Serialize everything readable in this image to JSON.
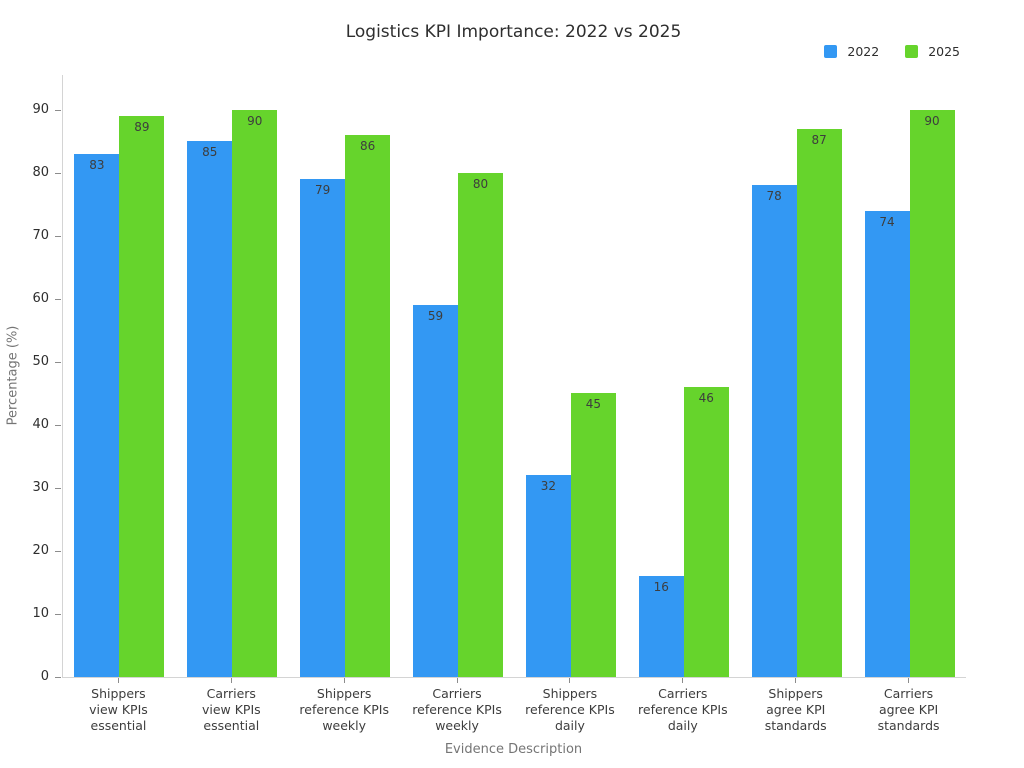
{
  "chart_data": {
    "type": "bar",
    "title": "Logistics KPI Importance: 2022 vs 2025",
    "xlabel": "Evidence Description",
    "ylabel": "Percentage (%)",
    "ylim": [
      0,
      95.5
    ],
    "y_ticks": [
      0,
      10,
      20,
      30,
      40,
      50,
      60,
      70,
      80,
      90
    ],
    "grid": false,
    "legend_position": "top-right",
    "bar_labels": true,
    "categories": [
      "Shippers\nview KPIs\nessential",
      "Carriers\nview KPIs\nessential",
      "Shippers\nreference KPIs\nweekly",
      "Carriers\nreference KPIs\nweekly",
      "Shippers\nreference KPIs\ndaily",
      "Carriers\nreference KPIs\ndaily",
      "Shippers\nagree KPI\nstandards",
      "Carriers\nagree KPI\nstandards"
    ],
    "series": [
      {
        "name": "2022",
        "color": "#3398f3",
        "values": [
          83,
          85,
          79,
          59,
          32,
          16,
          78,
          74
        ]
      },
      {
        "name": "2025",
        "color": "#66d42c",
        "values": [
          89,
          90,
          86,
          80,
          45,
          46,
          87,
          90
        ]
      }
    ]
  },
  "colors": {
    "axis_spine": "#d4d4d4",
    "tick_mark": "#8c8c8c",
    "title_text": "#2e2e2e",
    "axis_title_text": "#757575",
    "bar_label_text": "#3d3d3d"
  }
}
